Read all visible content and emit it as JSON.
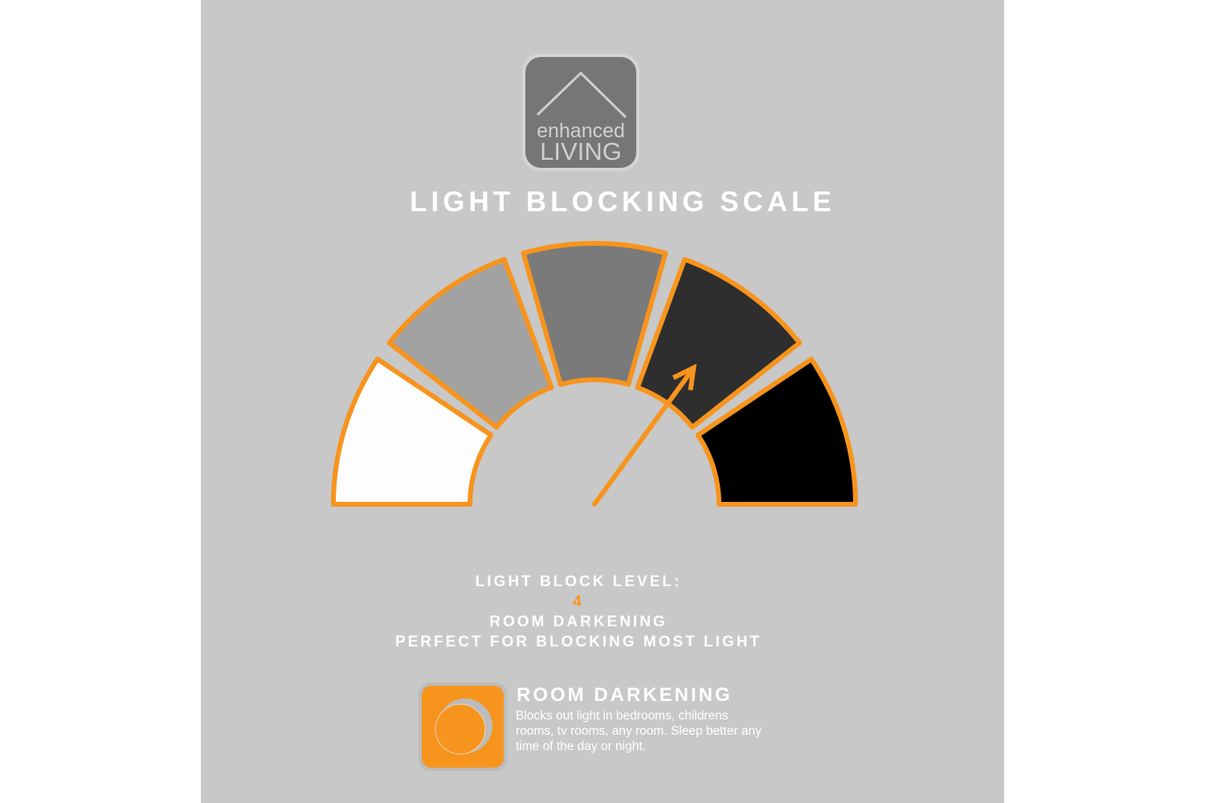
{
  "logo": {
    "word1": "enhanced",
    "word2": "LIVING",
    "icon": "house-roof-icon"
  },
  "title": "LIGHT BLOCKING SCALE",
  "gauge": {
    "level": 4,
    "max_level": 5,
    "segment_colors": [
      "#fdfdfd",
      "#a2a2a2",
      "#7a7a7a",
      "#2e2e2e",
      "#000000"
    ],
    "border_color": "#f7941d",
    "needle_color": "#f7941d"
  },
  "level_info": {
    "label": "LIGHT BLOCK LEVEL:",
    "value": "4",
    "name": "ROOM DARKENING",
    "tagline": "PERFECT FOR BLOCKING MOST LIGHT"
  },
  "feature": {
    "icon": "moon-icon",
    "title": "ROOM DARKENING",
    "description": "Blocks out light in bedrooms, childrens rooms, tv rooms, any room. Sleep better any time of the day or night."
  }
}
